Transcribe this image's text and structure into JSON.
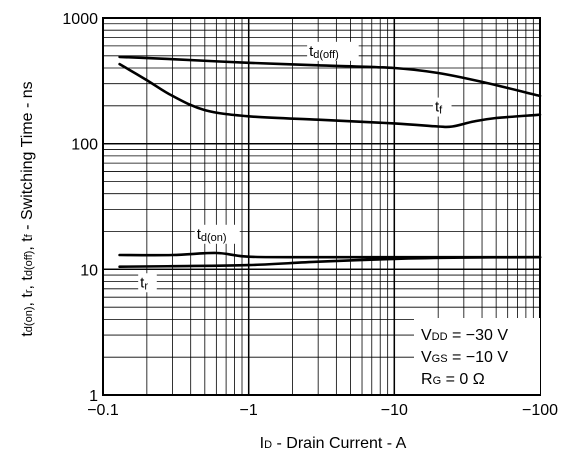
{
  "chart_data": {
    "type": "line",
    "xlabel": {
      "main": "I",
      "sub": "D",
      "rest": " - Drain Current - A"
    },
    "ylabel": {
      "parts": [
        {
          "t": "t"
        },
        {
          "t": "d(on)",
          "sub": true
        },
        {
          "t": ", t"
        },
        {
          "t": "r",
          "sub": true
        },
        {
          "t": ", t"
        },
        {
          "t": "d(off)",
          "sub": true
        },
        {
          "t": ", t"
        },
        {
          "t": "f",
          "sub": true
        },
        {
          "t": " - Switching Time - ns"
        }
      ]
    },
    "x_scale": "log",
    "y_scale": "log",
    "xlim": [
      -0.1,
      -100
    ],
    "ylim": [
      1,
      1000
    ],
    "x_ticks": [
      {
        "value": -0.1,
        "label": "−0.1"
      },
      {
        "value": -1,
        "label": "−1"
      },
      {
        "value": -10,
        "label": "−10"
      },
      {
        "value": -100,
        "label": "−100"
      }
    ],
    "y_ticks": [
      {
        "value": 1,
        "label": "1"
      },
      {
        "value": 10,
        "label": "10"
      },
      {
        "value": 100,
        "label": "100"
      },
      {
        "value": 1000,
        "label": "1000"
      }
    ],
    "grid": true,
    "series": [
      {
        "key": "tdoff",
        "label_main": "t",
        "label_sub": "d(off)",
        "label_at": [
          -2.6,
          500
        ],
        "points": [
          [
            -0.13,
            490
          ],
          [
            -0.3,
            470
          ],
          [
            -1,
            440
          ],
          [
            -3,
            420
          ],
          [
            -10,
            400
          ],
          [
            -20,
            365
          ],
          [
            -40,
            310
          ],
          [
            -100,
            240
          ]
        ]
      },
      {
        "key": "tf",
        "label_main": "t",
        "label_sub": "f",
        "label_at": [
          -19,
          180
        ],
        "points": [
          [
            -0.13,
            430
          ],
          [
            -0.2,
            320
          ],
          [
            -0.3,
            240
          ],
          [
            -0.5,
            185
          ],
          [
            -1,
            165
          ],
          [
            -3,
            155
          ],
          [
            -10,
            145
          ],
          [
            -20,
            137
          ],
          [
            -25,
            137
          ],
          [
            -35,
            150
          ],
          [
            -50,
            160
          ],
          [
            -100,
            170
          ]
        ]
      },
      {
        "key": "tdon",
        "label_main": "t",
        "label_sub": "d(on)",
        "label_at": [
          -0.44,
          17.5
        ],
        "points": [
          [
            -0.13,
            13
          ],
          [
            -0.3,
            13
          ],
          [
            -0.6,
            13.5
          ],
          [
            -1,
            12.6
          ],
          [
            -3,
            12.5
          ],
          [
            -10,
            12.5
          ],
          [
            -30,
            12.5
          ],
          [
            -100,
            12.5
          ]
        ]
      },
      {
        "key": "tr",
        "label_main": "t",
        "label_sub": "r",
        "label_at": [
          -0.18,
          7.2
        ],
        "points": [
          [
            -0.13,
            10.5
          ],
          [
            -0.3,
            10.6
          ],
          [
            -1,
            10.8
          ],
          [
            -3,
            11.5
          ],
          [
            -10,
            12.1
          ],
          [
            -30,
            12.4
          ],
          [
            -100,
            12.5
          ]
        ]
      }
    ],
    "annotations": [
      {
        "main": "V",
        "sub": "DD",
        "rest": " = −30 V"
      },
      {
        "main": "V",
        "sub": "GS",
        "rest": " = −10 V"
      },
      {
        "main": "R",
        "sub": "G",
        "rest": " = 0 Ω"
      }
    ]
  }
}
